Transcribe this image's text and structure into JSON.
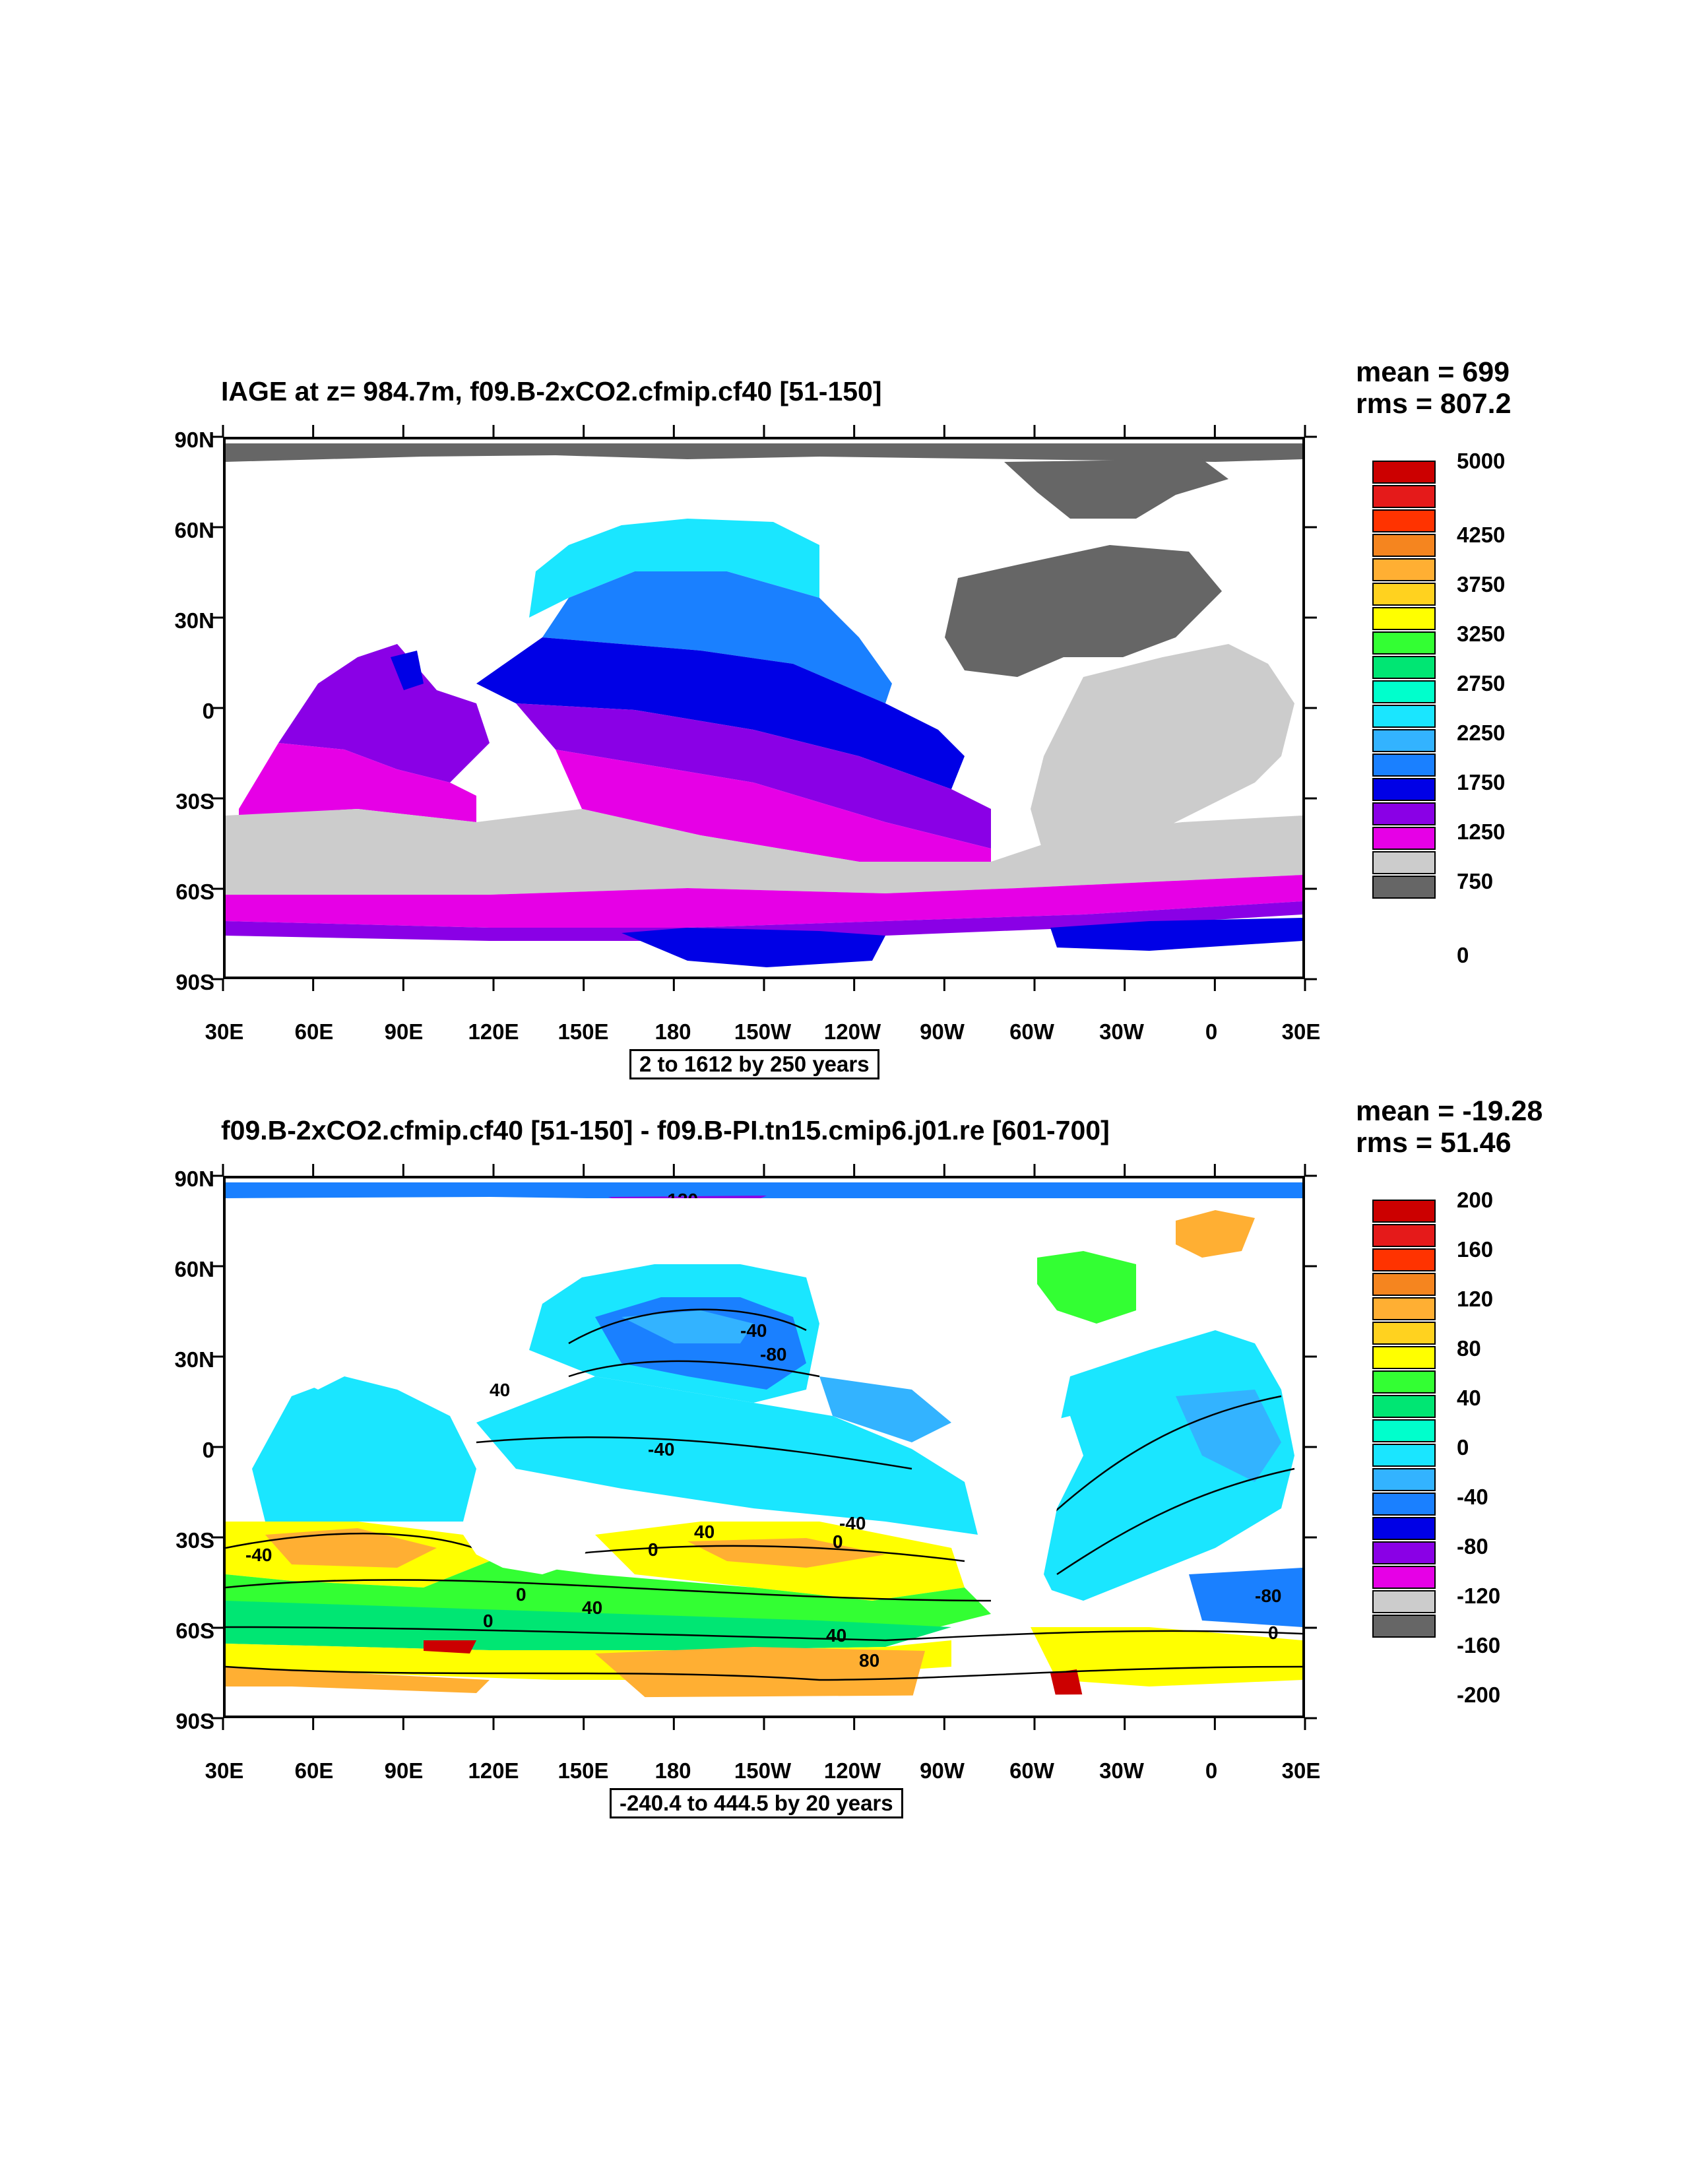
{
  "panels": [
    {
      "title": "IAGE at z= 984.7m, f09.B-2xCO2.cfmip.cf40 [51-150]",
      "mean": "mean = 699",
      "rms": "rms = 807.2",
      "info": "2 to 1612 by 250 years",
      "colorbar": {
        "colors": [
          "#cc0000",
          "#e51a1a",
          "#ff3300",
          "#f5851f",
          "#ffaf33",
          "#ffd21f",
          "#ffff00",
          "#33ff33",
          "#00e673",
          "#00ffcc",
          "#1ae6ff",
          "#33b3ff",
          "#1a80ff",
          "#0000e6",
          "#8a00e6",
          "#e600e6",
          "#cccccc",
          "#666666"
        ],
        "labels": [
          "5000",
          "4250",
          "3750",
          "3250",
          "2750",
          "2250",
          "1750",
          "1250",
          "750",
          "0"
        ]
      }
    },
    {
      "title": "f09.B-2xCO2.cfmip.cf40 [51-150] - f09.B-PI.tn15.cmip6.j01.re [601-700]",
      "mean": "mean = -19.28",
      "rms": "rms = 51.46",
      "info": "-240.4 to 444.5 by 20 years",
      "colorbar": {
        "colors": [
          "#cc0000",
          "#e51a1a",
          "#ff3300",
          "#f5851f",
          "#ffaf33",
          "#ffd21f",
          "#ffff00",
          "#33ff33",
          "#00e673",
          "#00ffcc",
          "#1ae6ff",
          "#33b3ff",
          "#1a80ff",
          "#0000e6",
          "#8a00e6",
          "#e600e6",
          "#cccccc",
          "#666666"
        ],
        "labels": [
          "200",
          "160",
          "120",
          "80",
          "40",
          "0",
          "-40",
          "-80",
          "-120",
          "-160",
          "-200"
        ],
        "contour_labels": [
          "-120",
          "-40",
          "-80",
          "40",
          "-40",
          "0",
          "40",
          "-40",
          "0",
          "40",
          "-40",
          "0",
          "0",
          "40",
          "80",
          "0",
          "-80"
        ]
      }
    }
  ],
  "lat_labels": [
    "90N",
    "60N",
    "30N",
    "0",
    "30S",
    "60S",
    "90S"
  ],
  "lon_labels": [
    "30E",
    "60E",
    "90E",
    "120E",
    "150E",
    "180",
    "150W",
    "120W",
    "90W",
    "60W",
    "30W",
    "0",
    "30E"
  ]
}
